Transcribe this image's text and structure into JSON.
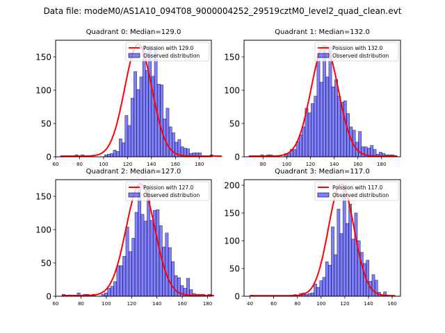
{
  "figure": {
    "suptitle": "Data file: modeM0/AS1A10_094T08_9000004252_29519cztM0_level2_quad_clean.evt"
  },
  "colors": {
    "bar_fill": "#0000ff",
    "bar_fill_opacity": 0.5,
    "bar_edge": "#000000",
    "poisson_line": "#ff0000"
  },
  "chart_data": [
    {
      "type": "bar",
      "title": "Quadrant 0: Median=129.0",
      "median": 129.0,
      "legend": [
        "Poission with 129.0",
        "Observed distribution"
      ],
      "legend_loc": "upper-right",
      "xlim": [
        60,
        190
      ],
      "ylim": [
        0,
        175
      ],
      "xticks": [
        60,
        80,
        100,
        120,
        140,
        160,
        180
      ],
      "yticks": [
        0,
        50,
        100,
        150
      ],
      "bin_start": 64,
      "bin_width": 2.45,
      "values": [
        1,
        1,
        1,
        1,
        0,
        3,
        0,
        3,
        0,
        0,
        0,
        0,
        0,
        0,
        0,
        3,
        4,
        5,
        10,
        8,
        27,
        21,
        62,
        47,
        88,
        128,
        101,
        120,
        165,
        130,
        165,
        121,
        165,
        109,
        108,
        57,
        73,
        45,
        36,
        22,
        26,
        15,
        13,
        12,
        5,
        6,
        6,
        6,
        0,
        0,
        1,
        3,
        0,
        1,
        1
      ],
      "poisson_mean": 129.0,
      "poisson_peak": 168
    },
    {
      "type": "bar",
      "title": "Quadrant 1: Median=132.0",
      "median": 132.0,
      "legend": [
        "Poission with 132.0",
        "Observed distribution"
      ],
      "legend_loc": "upper-right",
      "xlim": [
        64,
        196
      ],
      "ylim": [
        0,
        175
      ],
      "xticks": [
        80,
        100,
        120,
        140,
        160,
        180
      ],
      "yticks": [
        0,
        50,
        100,
        150
      ],
      "bin_start": 68,
      "bin_width": 2.5,
      "values": [
        1,
        1,
        1,
        1,
        3,
        0,
        3,
        3,
        0,
        0,
        0,
        0,
        5,
        5,
        11,
        11,
        23,
        33,
        45,
        73,
        66,
        80,
        91,
        150,
        112,
        165,
        120,
        165,
        105,
        116,
        91,
        82,
        84,
        65,
        45,
        40,
        22,
        38,
        15,
        15,
        13,
        17,
        11,
        4,
        7,
        5,
        3,
        3,
        3,
        2
      ],
      "poisson_mean": 132.0,
      "poisson_peak": 166
    },
    {
      "type": "bar",
      "title": "Quadrant 2: Median=127.0",
      "median": 127.0,
      "legend": [
        "Poission with 127.0",
        "Observed distribution"
      ],
      "legend_loc": "upper-right",
      "xlim": [
        60,
        183
      ],
      "ylim": [
        0,
        175
      ],
      "xticks": [
        60,
        80,
        100,
        120,
        140,
        160,
        180
      ],
      "yticks": [
        0,
        50,
        100,
        150
      ],
      "bin_start": 65,
      "bin_width": 2.4,
      "values": [
        3,
        0,
        2,
        0,
        0,
        5,
        0,
        3,
        3,
        0,
        3,
        0,
        0,
        3,
        5,
        12,
        15,
        22,
        46,
        46,
        60,
        104,
        67,
        87,
        126,
        165,
        123,
        113,
        165,
        114,
        129,
        130,
        106,
        74,
        95,
        73,
        52,
        31,
        28,
        16,
        12,
        27,
        10,
        4,
        3,
        3,
        3,
        1,
        3,
        1
      ],
      "poisson_mean": 127.0,
      "poisson_peak": 168
    },
    {
      "type": "bar",
      "title": "Quadrant 3: Median=117.0",
      "median": 117.0,
      "legend": [
        "Poission with 117.0",
        "Observed distribution"
      ],
      "legend_loc": "upper-right",
      "xlim": [
        35,
        167
      ],
      "ylim": [
        0,
        210
      ],
      "xticks": [
        40,
        60,
        80,
        100,
        120,
        140,
        160
      ],
      "yticks": [
        0,
        50,
        100,
        150,
        200
      ],
      "bin_start": 40,
      "bin_width": 2.45,
      "values": [
        2,
        0,
        0,
        0,
        0,
        0,
        0,
        0,
        0,
        0,
        0,
        0,
        1,
        1,
        2,
        3,
        2,
        5,
        6,
        3,
        5,
        6,
        22,
        16,
        28,
        34,
        62,
        56,
        125,
        75,
        157,
        113,
        200,
        131,
        166,
        103,
        150,
        100,
        79,
        59,
        65,
        27,
        39,
        29,
        7,
        3,
        8,
        1,
        1,
        1
      ],
      "poisson_mean": 117.0,
      "poisson_peak": 201
    }
  ]
}
